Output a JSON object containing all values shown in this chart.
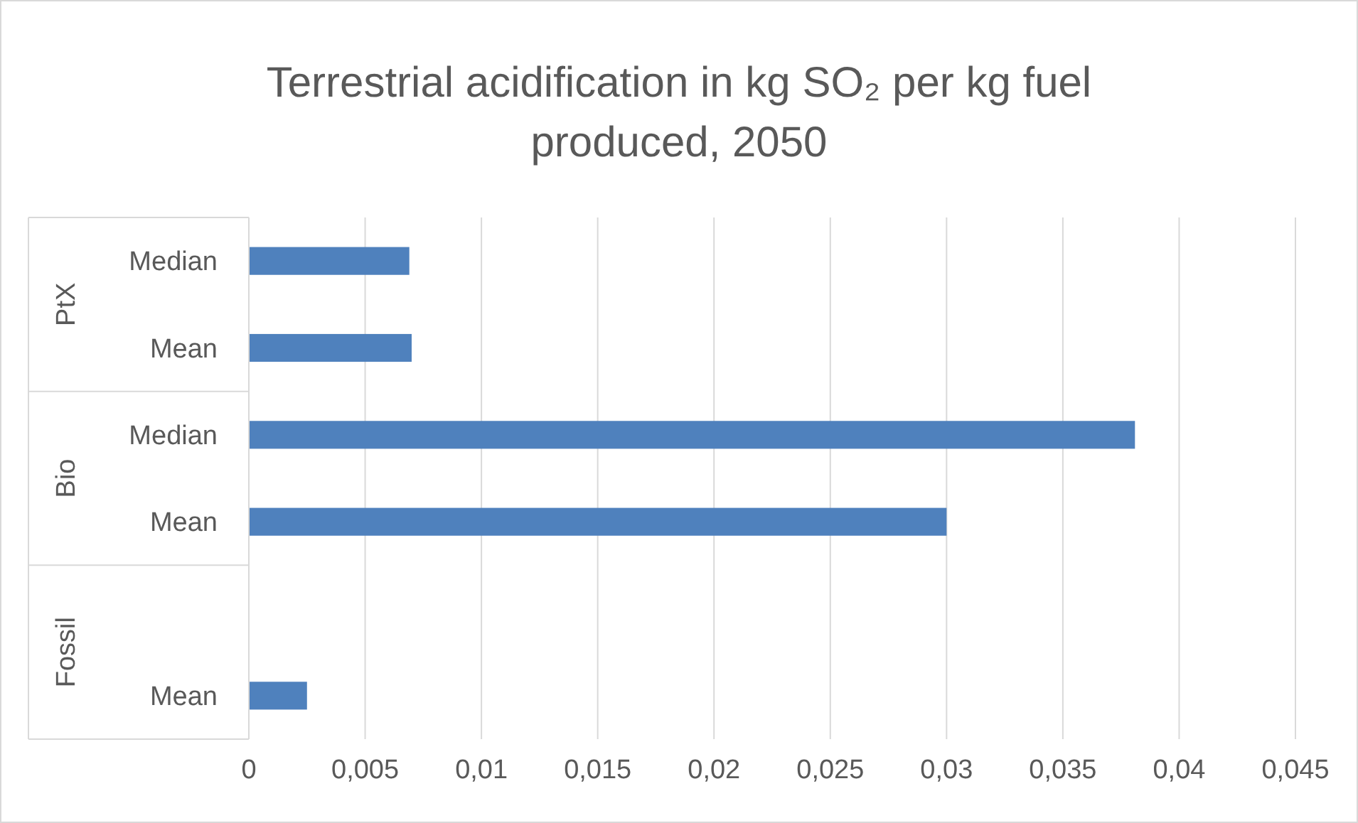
{
  "chart_data": {
    "type": "bar",
    "orientation": "horizontal",
    "title": "Terrestrial acidification in kg SO₂ per kg fuel produced, 2050",
    "categories": [
      "Median",
      "Mean",
      "Median",
      "Mean",
      null,
      "Mean"
    ],
    "values": [
      0.0069,
      0.007,
      0.0381,
      0.03,
      null,
      0.0025
    ],
    "color": "#4f81bd",
    "annotations": [
      "PtX",
      "Bio",
      "Fossil"
    ],
    "xlim": [
      0,
      0.045
    ],
    "xticks": [
      0,
      {
        "value": 0.005,
        "label": "0,005"
      },
      {
        "value": 0.01,
        "label": "0,01"
      },
      {
        "value": 0.015,
        "label": "0,015"
      },
      {
        "value": 0.02,
        "label": "0,02"
      },
      {
        "value": 0.025,
        "label": "0,025"
      },
      {
        "value": 0.03,
        "label": "0,03"
      },
      {
        "value": 0.035,
        "label": "0,035"
      },
      {
        "value": 0.04,
        "label": "0,04"
      },
      {
        "value": 0.045,
        "label": "0,045"
      }
    ],
    "grid": "x"
  }
}
